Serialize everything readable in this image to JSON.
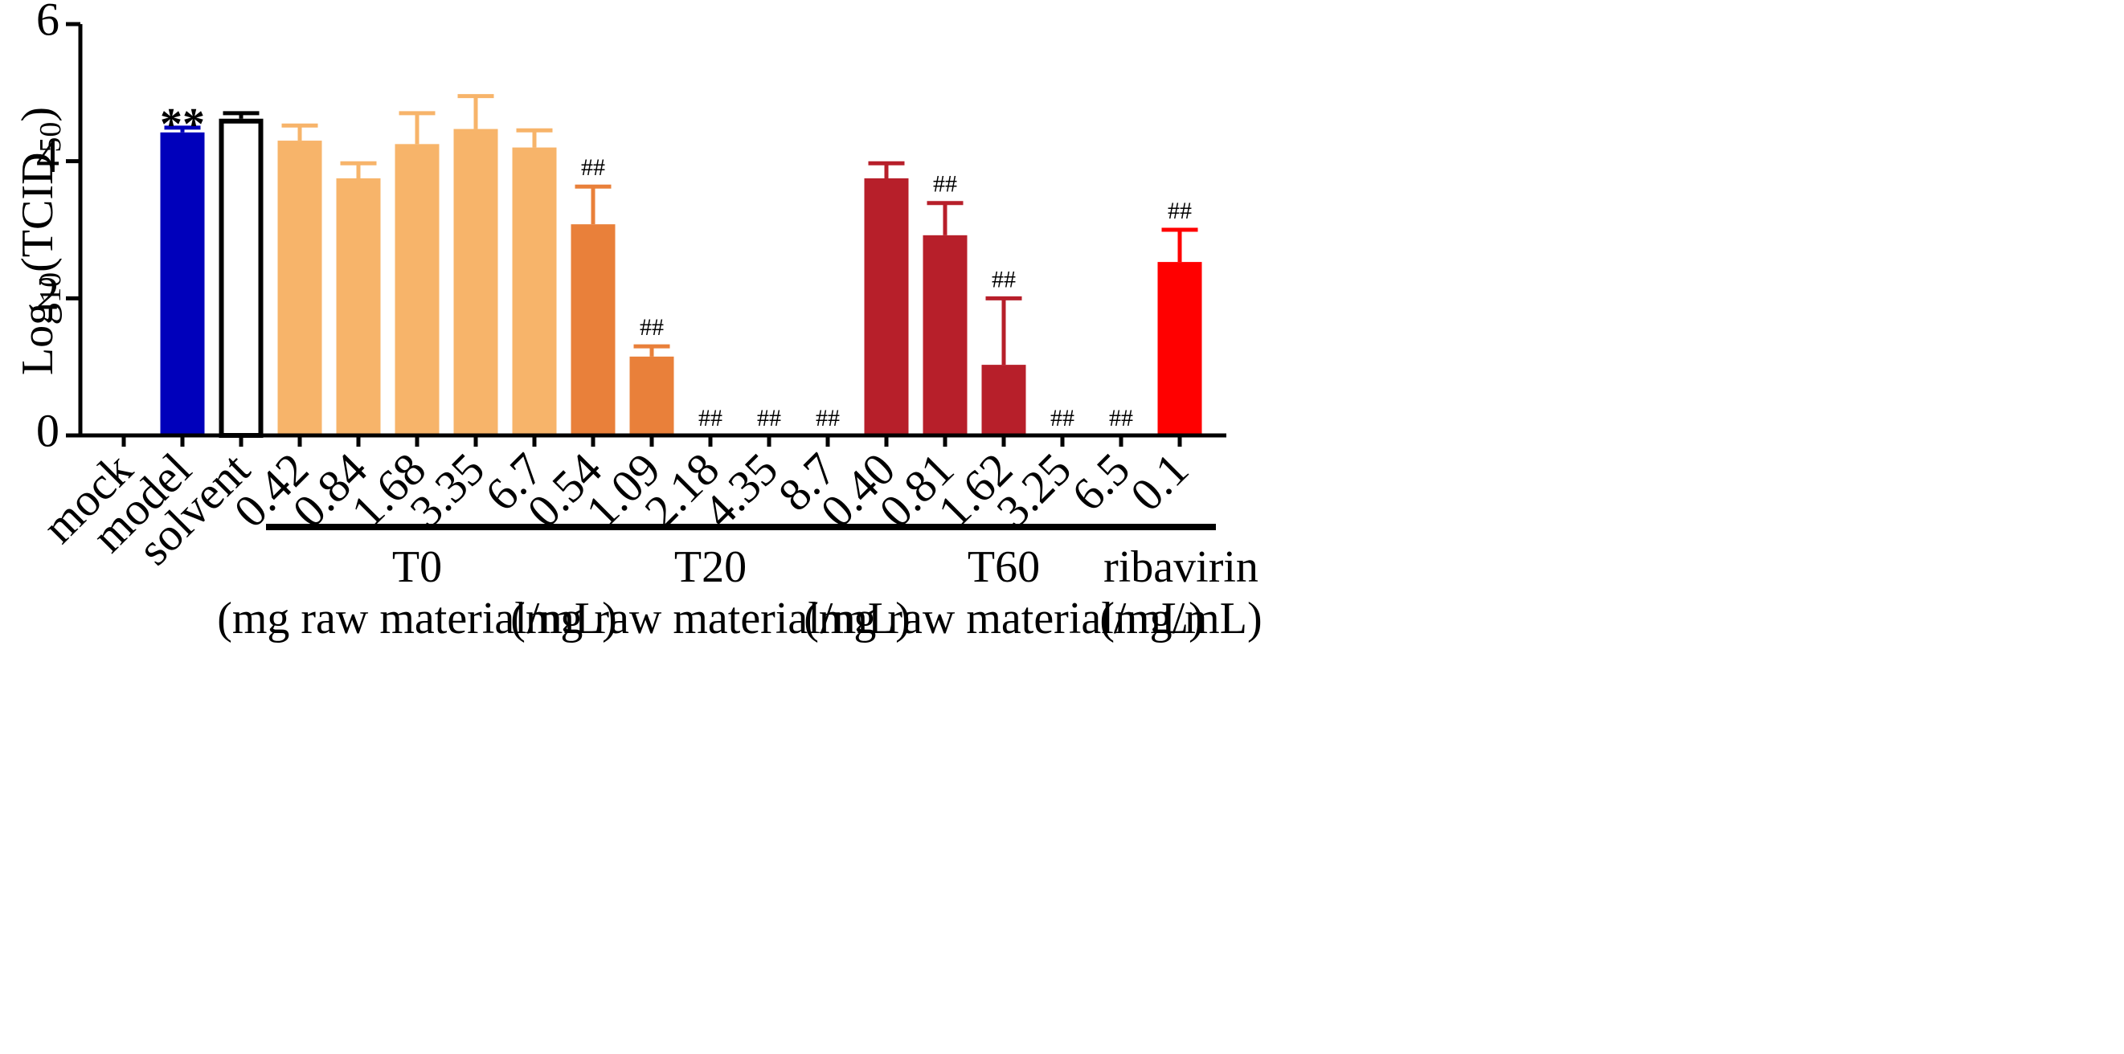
{
  "chart_data": {
    "type": "bar",
    "title": "",
    "xlabel": "",
    "ylabel": {
      "main": "Log",
      "sub": "10",
      "mid": "(TCID",
      "sub2": "50",
      "end": ")"
    },
    "ylim": [
      0,
      6
    ],
    "yticks": [
      0,
      2,
      4,
      6
    ],
    "colors": {
      "model": "#0000bb",
      "solvent": "#ffffff",
      "T0": "#f7b46a",
      "T20": "#e9803a",
      "T60": "#b71f2a",
      "ribavirin": "#ff0000",
      "axis": "#000000"
    },
    "bars": [
      {
        "name": "mock-bar",
        "label": "mock",
        "group": "mock",
        "value": 0,
        "error": 0,
        "annotation": ""
      },
      {
        "name": "model-bar",
        "label": "model",
        "group": "model",
        "value": 4.42,
        "error": 0.07,
        "annotation": "**"
      },
      {
        "name": "solvent-bar",
        "label": "solvent",
        "group": "solvent",
        "value": 4.62,
        "error": 0.08,
        "annotation": ""
      },
      {
        "name": "t0-042-bar",
        "label": "0.42",
        "group": "T0",
        "value": 4.3,
        "error": 0.22,
        "annotation": ""
      },
      {
        "name": "t0-084-bar",
        "label": "0.84",
        "group": "T0",
        "value": 3.75,
        "error": 0.22,
        "annotation": ""
      },
      {
        "name": "t0-168-bar",
        "label": "1.68",
        "group": "T0",
        "value": 4.25,
        "error": 0.45,
        "annotation": ""
      },
      {
        "name": "t0-335-bar",
        "label": "3.35",
        "group": "T0",
        "value": 4.47,
        "error": 0.48,
        "annotation": ""
      },
      {
        "name": "t0-67-bar",
        "label": "6.7",
        "group": "T0",
        "value": 4.2,
        "error": 0.25,
        "annotation": ""
      },
      {
        "name": "t20-054-bar",
        "label": "0.54",
        "group": "T20",
        "value": 3.08,
        "error": 0.55,
        "annotation": "##"
      },
      {
        "name": "t20-109-bar",
        "label": "1.09",
        "group": "T20",
        "value": 1.15,
        "error": 0.15,
        "annotation": "##"
      },
      {
        "name": "t20-218-bar",
        "label": "2.18",
        "group": "T20",
        "value": 0,
        "error": 0,
        "annotation": "##"
      },
      {
        "name": "t20-435-bar",
        "label": "4.35",
        "group": "T20",
        "value": 0,
        "error": 0,
        "annotation": "##"
      },
      {
        "name": "t20-87-bar",
        "label": "8.7",
        "group": "T20",
        "value": 0,
        "error": 0,
        "annotation": "##"
      },
      {
        "name": "t60-040-bar",
        "label": "0.40",
        "group": "T60",
        "value": 3.75,
        "error": 0.22,
        "annotation": ""
      },
      {
        "name": "t60-081-bar",
        "label": "0.81",
        "group": "T60",
        "value": 2.92,
        "error": 0.47,
        "annotation": "##"
      },
      {
        "name": "t60-162-bar",
        "label": "1.62",
        "group": "T60",
        "value": 1.03,
        "error": 0.97,
        "annotation": "##"
      },
      {
        "name": "t60-325-bar",
        "label": "3.25",
        "group": "T60",
        "value": 0,
        "error": 0,
        "annotation": "##"
      },
      {
        "name": "t60-65-bar",
        "label": "6.5",
        "group": "T60",
        "value": 0,
        "error": 0,
        "annotation": "##"
      },
      {
        "name": "ribavirin-bar",
        "label": "0.1",
        "group": "ribavirin",
        "value": 2.53,
        "error": 0.47,
        "annotation": "##"
      }
    ],
    "groups": [
      {
        "name": "t0-group",
        "key": "T0",
        "label": "T0",
        "unit": "(mg raw material/mL)"
      },
      {
        "name": "t20-group",
        "key": "T20",
        "label": "T20",
        "unit": "(mg raw material/mL)"
      },
      {
        "name": "t60-group",
        "key": "T60",
        "label": "T60",
        "unit": "(mg raw material/mL)"
      },
      {
        "name": "ribavirin-group",
        "key": "ribavirin",
        "label": "ribavirin",
        "unit": "(mg/mL)"
      }
    ]
  }
}
